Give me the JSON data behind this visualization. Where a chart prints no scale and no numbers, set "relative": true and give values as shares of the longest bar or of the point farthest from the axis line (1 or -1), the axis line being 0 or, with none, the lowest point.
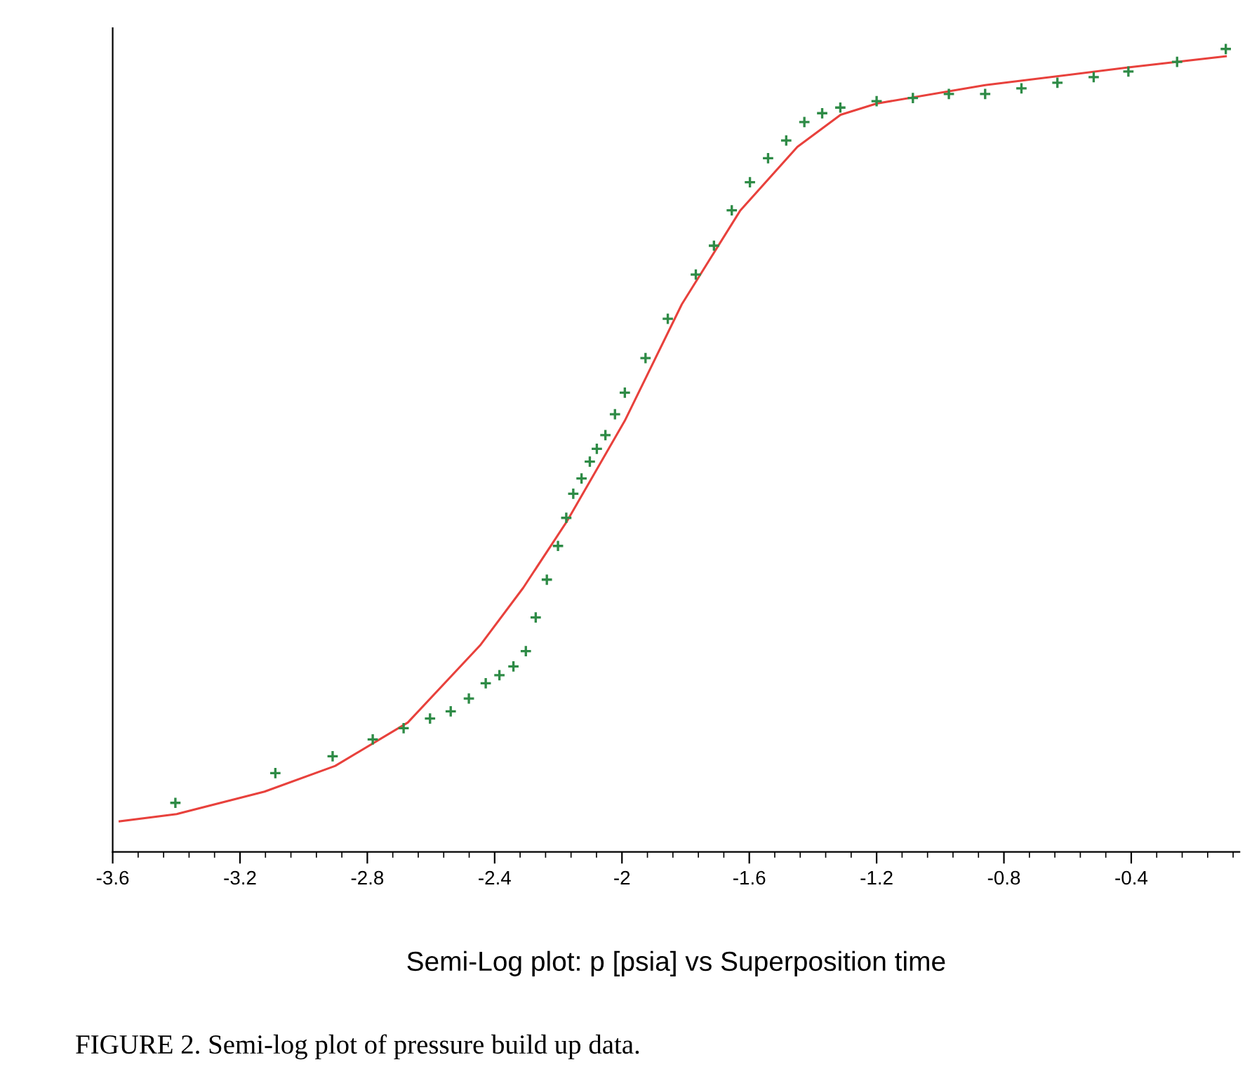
{
  "chart_data": {
    "type": "scatter",
    "relative": true,
    "xlabel": "Semi-Log plot: p [psia] vs Superposition time",
    "annotations": [
      "FIGURE 2. Semi-log plot of pressure build up data."
    ],
    "xlim": [
      -3.6,
      -0.06
    ],
    "xticks": [
      -3.6,
      -3.2,
      -2.8,
      -2.4,
      -2,
      -1.6,
      -1.2,
      -0.8,
      -0.4
    ],
    "grid": false,
    "legend": false,
    "marker": "cross",
    "series": [
      {
        "color": "#2e8b46",
        "x": [
          -3.403,
          -3.089,
          -2.909,
          -2.783,
          -2.686,
          -2.603,
          -2.538,
          -2.481,
          -2.428,
          -2.385,
          -2.341,
          -2.302,
          -2.271,
          -2.236,
          -2.201,
          -2.175,
          -2.153,
          -2.127,
          -2.101,
          -2.079,
          -2.052,
          -2.022,
          -1.991,
          -1.926,
          -1.856,
          -1.768,
          -1.711,
          -1.655,
          -1.598,
          -1.541,
          -1.484,
          -1.427,
          -1.371,
          -1.314,
          -1.2,
          -1.086,
          -0.973,
          -0.859,
          -0.745,
          -0.632,
          -0.518,
          -0.409,
          -0.256,
          -0.103
        ],
        "values": [
          0.061,
          0.098,
          0.119,
          0.14,
          0.154,
          0.166,
          0.175,
          0.191,
          0.21,
          0.22,
          0.231,
          0.25,
          0.292,
          0.339,
          0.381,
          0.416,
          0.446,
          0.465,
          0.486,
          0.502,
          0.519,
          0.545,
          0.572,
          0.615,
          0.664,
          0.719,
          0.755,
          0.799,
          0.834,
          0.864,
          0.886,
          0.909,
          0.92,
          0.927,
          0.935,
          0.939,
          0.944,
          0.944,
          0.951,
          0.958,
          0.965,
          0.972,
          0.984,
          1.0
        ]
      },
      {
        "type": "line",
        "color": "#e8413c",
        "marker": "none",
        "x": [
          -3.578,
          -3.399,
          -3.123,
          -2.901,
          -2.673,
          -2.446,
          -2.31,
          -2.174,
          -1.991,
          -1.812,
          -1.628,
          -1.449,
          -1.313,
          -1.2,
          -0.859,
          -0.409,
          -0.103
        ],
        "values": [
          0.038,
          0.047,
          0.075,
          0.107,
          0.161,
          0.257,
          0.329,
          0.411,
          0.537,
          0.682,
          0.799,
          0.878,
          0.918,
          0.932,
          0.955,
          0.977,
          0.991
        ]
      }
    ]
  }
}
